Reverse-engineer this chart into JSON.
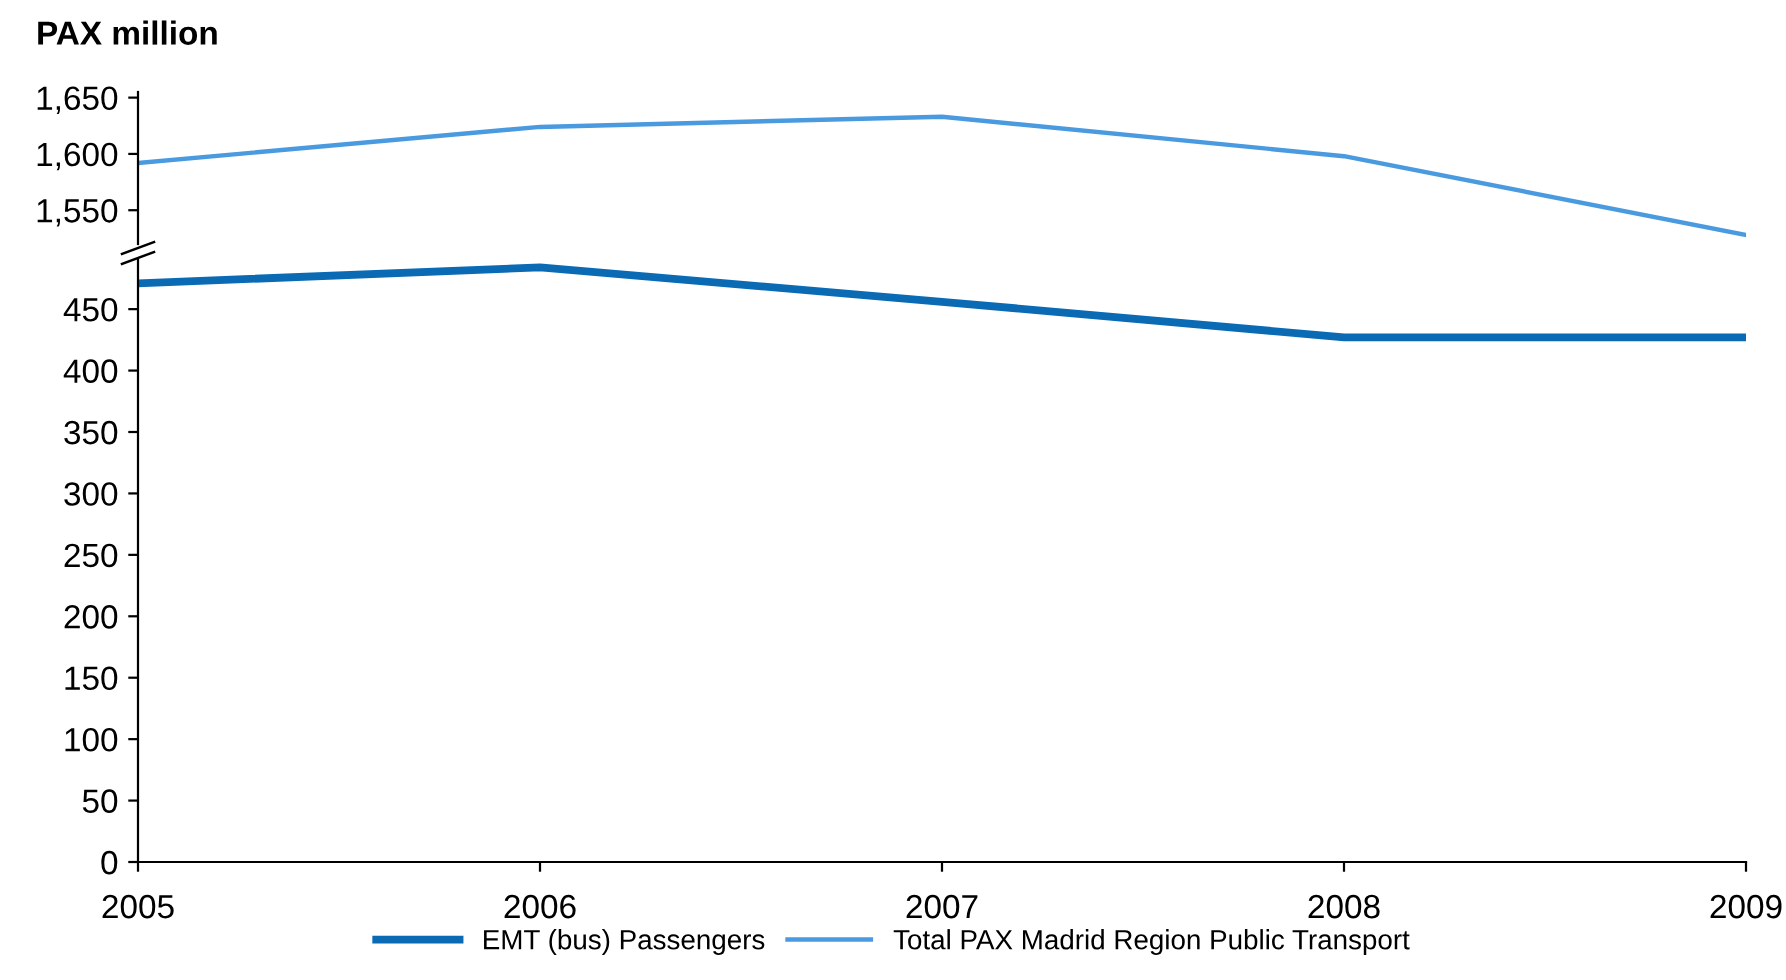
{
  "chart_data": [
    {
      "type": "line",
      "title": "PAX million",
      "x": [
        2005,
        2006,
        2007,
        2008,
        2009
      ],
      "xlim": [
        2005,
        2009
      ],
      "ylim": [
        1520,
        1655
      ],
      "yticks": [
        {
          "value": 1550,
          "label": "1,550"
        },
        {
          "value": 1600,
          "label": "1,600"
        },
        {
          "value": 1650,
          "label": "1,650"
        }
      ],
      "tick_labels": "y",
      "grid": false,
      "legend": "bottom",
      "series": [
        {
          "name": "Total PAX Madrid Region Public Transport",
          "color": "#4a9ae0",
          "values": [
            1592,
            1624,
            1633,
            1598,
            1528
          ]
        }
      ]
    },
    {
      "type": "line",
      "x": [
        2005,
        2006,
        2007,
        2008,
        2009
      ],
      "xlim": [
        2005,
        2009
      ],
      "xticks": [
        2005,
        2006,
        2007,
        2008,
        2009
      ],
      "ylim": [
        0,
        490
      ],
      "yticks": [
        0,
        50,
        100,
        150,
        200,
        250,
        300,
        350,
        400,
        450
      ],
      "grid": false,
      "legend": "bottom",
      "series": [
        {
          "name": "EMT (bus) Passengers",
          "color": "#0a6ab4",
          "values": [
            471,
            484,
            456,
            427,
            427
          ]
        }
      ]
    }
  ]
}
